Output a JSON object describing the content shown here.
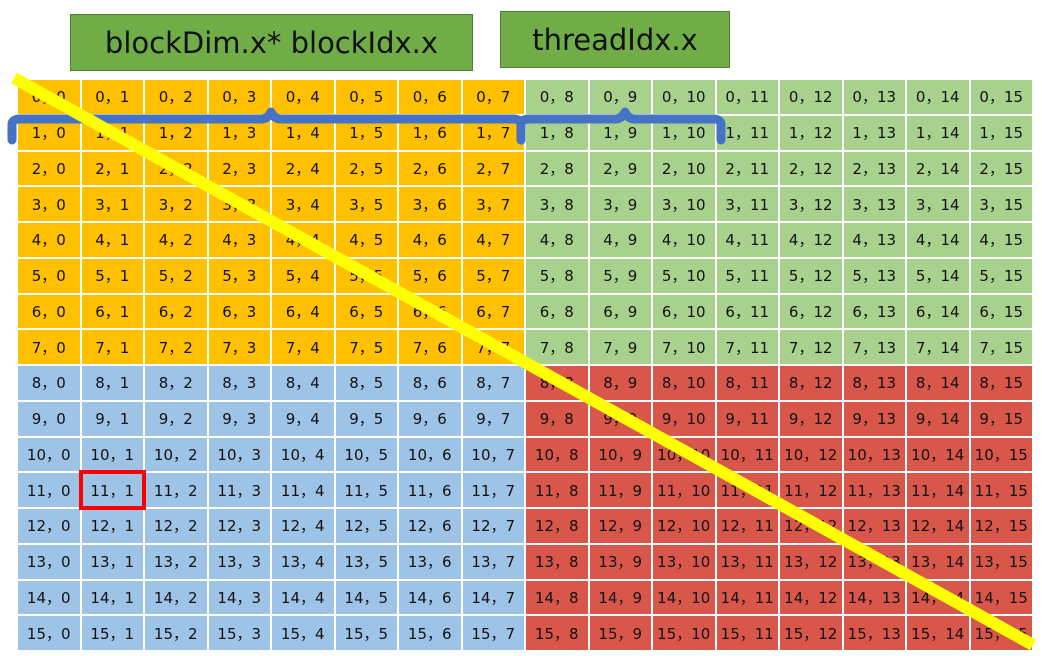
{
  "labels": {
    "block_offset": "blockDim.x* blockIdx.x",
    "thread_index": "threadIdx.x"
  },
  "grid": {
    "rows": 16,
    "cols": 16,
    "separator": "，",
    "block_size": 8,
    "highlighted_cell": [
      11,
      1
    ]
  },
  "colors": {
    "top_left_block": "#ffc000",
    "top_right_block": "#a9d18e",
    "bottom_left_block": "#9dc3e6",
    "bottom_right_block": "#d9574a",
    "label_box": "#70ad47",
    "brace": "#4472c4",
    "diagonal_line": "#ffff00",
    "highlight": "#ff0000"
  }
}
